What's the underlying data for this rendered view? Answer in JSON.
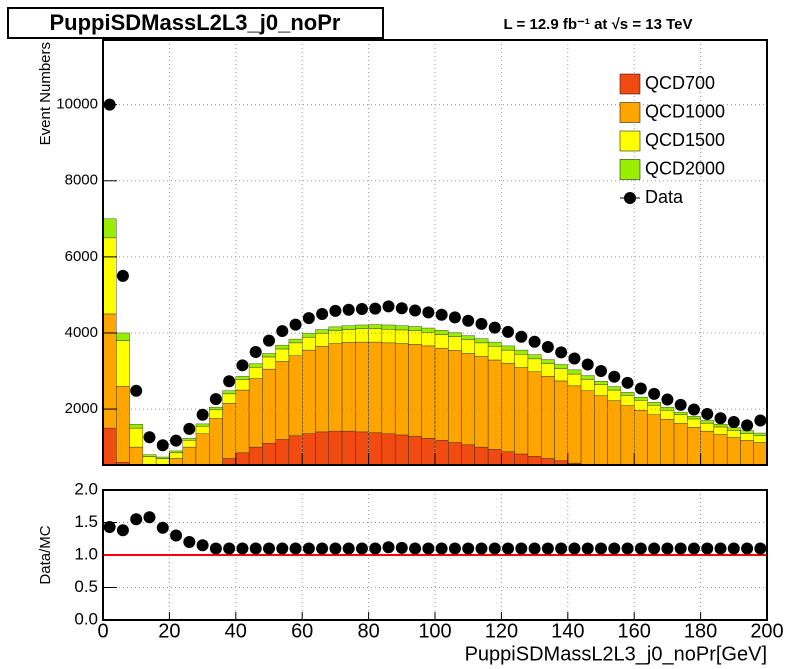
{
  "chart_data": [
    {
      "type": "stacked-histogram",
      "title": "PuppiSDMassL2L3_j0_noPr",
      "annotation": "L = 12.9 fb⁻¹ at √s = 13 TeV",
      "ylabel": "Event Numbers",
      "bins": [
        0,
        4,
        8,
        12,
        16,
        20,
        24,
        28,
        32,
        36,
        40,
        44,
        48,
        52,
        56,
        60,
        64,
        68,
        72,
        76,
        80,
        84,
        88,
        92,
        96,
        100,
        104,
        108,
        112,
        116,
        120,
        124,
        128,
        132,
        136,
        140,
        144,
        148,
        152,
        156,
        160,
        164,
        168,
        172,
        176,
        180,
        184,
        188,
        192,
        196,
        200
      ],
      "ylim": [
        530,
        11700
      ],
      "yticks": [
        2000,
        4000,
        6000,
        8000,
        10000
      ],
      "grid": true,
      "legend": "upper right",
      "series": [
        {
          "name": "QCD700",
          "color": "#f24b12",
          "values": [
            1500,
            600,
            150,
            30,
            20,
            60,
            150,
            300,
            500,
            700,
            850,
            1000,
            1100,
            1200,
            1300,
            1350,
            1400,
            1420,
            1420,
            1400,
            1380,
            1350,
            1320,
            1280,
            1230,
            1180,
            1120,
            1060,
            1000,
            940,
            880,
            820,
            760,
            700,
            640,
            580,
            520,
            460,
            410,
            360,
            310,
            270,
            230,
            200,
            170,
            140,
            120,
            100,
            80,
            60
          ]
        },
        {
          "name": "QCD1000",
          "color": "#ffa500",
          "values": [
            3000,
            2000,
            850,
            470,
            530,
            640,
            850,
            1050,
            1250,
            1450,
            1650,
            1800,
            1950,
            2050,
            2100,
            2200,
            2250,
            2300,
            2330,
            2360,
            2380,
            2390,
            2400,
            2420,
            2430,
            2420,
            2420,
            2400,
            2380,
            2350,
            2320,
            2270,
            2220,
            2160,
            2100,
            2030,
            1960,
            1890,
            1810,
            1730,
            1660,
            1580,
            1500,
            1420,
            1350,
            1280,
            1210,
            1150,
            1100,
            1060
          ]
        },
        {
          "name": "QCD1500",
          "color": "#ffff00",
          "values": [
            2000,
            1200,
            500,
            250,
            150,
            150,
            180,
            200,
            230,
            250,
            280,
            300,
            320,
            330,
            340,
            340,
            340,
            340,
            340,
            350,
            350,
            360,
            360,
            360,
            360,
            360,
            360,
            360,
            360,
            360,
            350,
            350,
            340,
            330,
            320,
            310,
            300,
            290,
            280,
            270,
            260,
            250,
            240,
            230,
            220,
            210,
            200,
            190,
            180,
            180
          ]
        },
        {
          "name": "QCD2000",
          "color": "#99ee00",
          "values": [
            500,
            200,
            100,
            50,
            40,
            50,
            50,
            60,
            70,
            80,
            80,
            90,
            90,
            100,
            100,
            100,
            100,
            100,
            100,
            100,
            110,
            110,
            110,
            110,
            110,
            110,
            110,
            110,
            110,
            110,
            110,
            110,
            110,
            110,
            110,
            110,
            100,
            90,
            90,
            80,
            80,
            80,
            80,
            70,
            70,
            70,
            70,
            70,
            70,
            70
          ]
        }
      ],
      "data": {
        "name": "Data",
        "color": "#000000",
        "values": [
          10000,
          5500,
          2480,
          1260,
          1050,
          1170,
          1480,
          1850,
          2260,
          2730,
          3150,
          3500,
          3800,
          4050,
          4220,
          4390,
          4500,
          4580,
          4610,
          4630,
          4640,
          4700,
          4650,
          4590,
          4540,
          4480,
          4410,
          4320,
          4240,
          4140,
          4030,
          3900,
          3770,
          3630,
          3490,
          3330,
          3170,
          3000,
          2850,
          2690,
          2540,
          2400,
          2250,
          2110,
          1990,
          1870,
          1760,
          1660,
          1570,
          1700
        ]
      }
    },
    {
      "type": "scatter",
      "xlabel": "PuppiSDMassL2L3_j0_noPr[GeV]",
      "ylabel": "Data/MC",
      "xlim": [
        0,
        200
      ],
      "xticks": [
        0,
        20,
        40,
        60,
        80,
        100,
        120,
        140,
        160,
        180,
        200
      ],
      "ylim": [
        0,
        2
      ],
      "yticks": [
        {
          "value": 0,
          "label": "0.0"
        },
        0.5,
        {
          "value": 1,
          "label": "1.0"
        },
        1.5,
        {
          "value": 2,
          "label": "2.0"
        }
      ],
      "grid": true,
      "reference_line": {
        "value": 1,
        "color": "#ff0000"
      },
      "color": "#000000",
      "x": [
        2,
        6,
        10,
        14,
        18,
        22,
        26,
        30,
        34,
        38,
        42,
        46,
        50,
        54,
        58,
        62,
        66,
        70,
        74,
        78,
        82,
        86,
        90,
        94,
        98,
        102,
        106,
        110,
        114,
        118,
        122,
        126,
        130,
        134,
        138,
        142,
        146,
        150,
        154,
        158,
        162,
        166,
        170,
        174,
        178,
        182,
        186,
        190,
        194,
        198
      ],
      "values": [
        1.43,
        1.38,
        1.55,
        1.58,
        1.42,
        1.3,
        1.2,
        1.15,
        1.1,
        1.1,
        1.1,
        1.1,
        1.1,
        1.1,
        1.1,
        1.1,
        1.1,
        1.1,
        1.1,
        1.1,
        1.1,
        1.12,
        1.11,
        1.1,
        1.1,
        1.1,
        1.1,
        1.1,
        1.1,
        1.1,
        1.1,
        1.1,
        1.1,
        1.1,
        1.1,
        1.1,
        1.1,
        1.1,
        1.1,
        1.1,
        1.1,
        1.1,
        1.1,
        1.1,
        1.1,
        1.1,
        1.1,
        1.1,
        1.1,
        1.1
      ]
    }
  ]
}
